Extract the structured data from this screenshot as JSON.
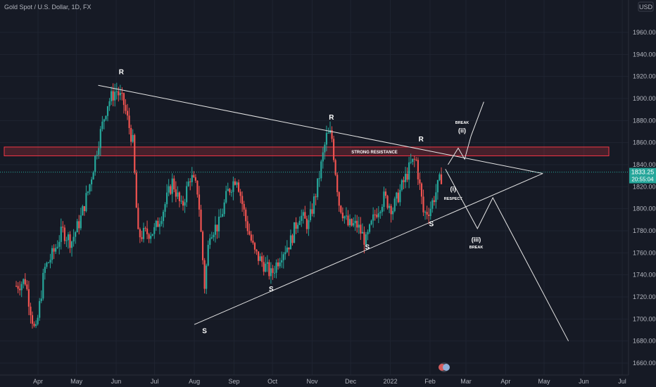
{
  "chart_data": {
    "type": "candlestick",
    "title": "Gold Spot / U.S. Dollar, 1D, FX",
    "currency": "USD",
    "ylim": [
      1650,
      1990
    ],
    "y_ticks": [
      1660,
      1680,
      1700,
      1720,
      1740,
      1760,
      1780,
      1800,
      1820,
      1840,
      1860,
      1880,
      1900,
      1920,
      1940,
      1960
    ],
    "y_tick_labels": [
      "1660.00",
      "1680.00",
      "1700.00",
      "1720.00",
      "1740.00",
      "1760.00",
      "1780.00",
      "1800.00",
      "1820.00",
      "1840.00",
      "1860.00",
      "1880.00",
      "1900.00",
      "1920.00",
      "1940.00",
      "1960.00"
    ],
    "x_tick_labels": [
      "Apr",
      "May",
      "Jun",
      "Jul",
      "Aug",
      "Sep",
      "Oct",
      "Nov",
      "Dec",
      "2022",
      "Feb",
      "Mar",
      "Apr",
      "May",
      "Jun",
      "Jul"
    ],
    "last_price": "1833.25",
    "countdown": "20:55:04",
    "colors": {
      "up": "#26a69a",
      "down": "#ef5350",
      "background": "#161a25",
      "lines": "#e6e6e6",
      "zone": "#f23645",
      "price_badge": "#26a69a"
    },
    "price_path": [
      {
        "date": "2021-03-15",
        "close": 1730
      },
      {
        "date": "2021-03-22",
        "close": 1735
      },
      {
        "date": "2021-03-30",
        "close": 1685
      },
      {
        "date": "2021-04-06",
        "close": 1745
      },
      {
        "date": "2021-04-13",
        "close": 1760
      },
      {
        "date": "2021-04-20",
        "close": 1780
      },
      {
        "date": "2021-04-27",
        "close": 1770
      },
      {
        "date": "2021-05-04",
        "close": 1790
      },
      {
        "date": "2021-05-11",
        "close": 1820
      },
      {
        "date": "2021-05-18",
        "close": 1860
      },
      {
        "date": "2021-05-25",
        "close": 1895
      },
      {
        "date": "2021-06-01",
        "close": 1908
      },
      {
        "date": "2021-06-07",
        "close": 1895
      },
      {
        "date": "2021-06-14",
        "close": 1860
      },
      {
        "date": "2021-06-18",
        "close": 1775
      },
      {
        "date": "2021-06-25",
        "close": 1778
      },
      {
        "date": "2021-07-01",
        "close": 1780
      },
      {
        "date": "2021-07-08",
        "close": 1800
      },
      {
        "date": "2021-07-15",
        "close": 1825
      },
      {
        "date": "2021-07-22",
        "close": 1800
      },
      {
        "date": "2021-07-29",
        "close": 1830
      },
      {
        "date": "2021-08-04",
        "close": 1815
      },
      {
        "date": "2021-08-09",
        "close": 1730
      },
      {
        "date": "2021-08-13",
        "close": 1780
      },
      {
        "date": "2021-08-20",
        "close": 1785
      },
      {
        "date": "2021-08-27",
        "close": 1815
      },
      {
        "date": "2021-09-03",
        "close": 1830
      },
      {
        "date": "2021-09-10",
        "close": 1790
      },
      {
        "date": "2021-09-17",
        "close": 1760
      },
      {
        "date": "2021-09-24",
        "close": 1750
      },
      {
        "date": "2021-09-30",
        "close": 1740
      },
      {
        "date": "2021-10-08",
        "close": 1760
      },
      {
        "date": "2021-10-15",
        "close": 1770
      },
      {
        "date": "2021-10-22",
        "close": 1795
      },
      {
        "date": "2021-10-29",
        "close": 1785
      },
      {
        "date": "2021-11-05",
        "close": 1820
      },
      {
        "date": "2021-11-12",
        "close": 1865
      },
      {
        "date": "2021-11-16",
        "close": 1868
      },
      {
        "date": "2021-11-22",
        "close": 1805
      },
      {
        "date": "2021-11-29",
        "close": 1785
      },
      {
        "date": "2021-12-06",
        "close": 1785
      },
      {
        "date": "2021-12-13",
        "close": 1770
      },
      {
        "date": "2021-12-20",
        "close": 1795
      },
      {
        "date": "2021-12-27",
        "close": 1810
      },
      {
        "date": "2022-01-03",
        "close": 1800
      },
      {
        "date": "2022-01-10",
        "close": 1820
      },
      {
        "date": "2022-01-17",
        "close": 1840
      },
      {
        "date": "2022-01-21",
        "close": 1845
      },
      {
        "date": "2022-01-27",
        "close": 1795
      },
      {
        "date": "2022-02-01",
        "close": 1800
      },
      {
        "date": "2022-02-07",
        "close": 1820
      },
      {
        "date": "2022-02-11",
        "close": 1833
      }
    ],
    "resistance_zone": {
      "label": "STRONG RESISTANCE",
      "from": 1848,
      "to": 1856
    },
    "trendlines": [
      {
        "name": "upper-trendline",
        "from": {
          "date": "2021-05-18",
          "price": 1912
        },
        "to": {
          "date": "2022-04-30",
          "price": 1832
        }
      },
      {
        "name": "lower-trendline",
        "from": {
          "date": "2021-08-01",
          "price": 1695
        },
        "to": {
          "date": "2022-04-30",
          "price": 1832
        }
      }
    ],
    "scenario_paths": [
      {
        "name": "breakout-path",
        "points": [
          {
            "date": "2022-02-15",
            "price": 1840
          },
          {
            "date": "2022-02-23",
            "price": 1855
          },
          {
            "date": "2022-02-28",
            "price": 1845
          },
          {
            "date": "2022-03-05",
            "price": 1866
          },
          {
            "date": "2022-03-15",
            "price": 1897
          }
        ]
      },
      {
        "name": "breakdown-path",
        "points": [
          {
            "date": "2022-02-13",
            "price": 1836
          },
          {
            "date": "2022-03-10",
            "price": 1782
          },
          {
            "date": "2022-03-22",
            "price": 1810
          },
          {
            "date": "2022-05-20",
            "price": 1680
          }
        ]
      }
    ],
    "annotations": [
      {
        "text": "R",
        "date": "2021-06-05",
        "price": 1922
      },
      {
        "text": "R",
        "date": "2021-11-16",
        "price": 1881
      },
      {
        "text": "R",
        "date": "2022-01-25",
        "price": 1861
      },
      {
        "text": "S",
        "date": "2021-08-09",
        "price": 1687
      },
      {
        "text": "S",
        "date": "2021-09-30",
        "price": 1725
      },
      {
        "text": "S",
        "date": "2021-12-14",
        "price": 1763
      },
      {
        "text": "S",
        "date": "2022-02-02",
        "price": 1784
      }
    ],
    "scenario_labels": [
      {
        "text": "BREAK",
        "date": "2022-02-26",
        "price": 1877,
        "size": "small"
      },
      {
        "text": "(ii)",
        "date": "2022-02-26",
        "price": 1869,
        "size": "big"
      },
      {
        "text": "(i)",
        "date": "2022-02-19",
        "price": 1816,
        "size": "big"
      },
      {
        "text": "RESPECT",
        "date": "2022-02-19",
        "price": 1808,
        "size": "small"
      },
      {
        "text": "(iii)",
        "date": "2022-03-09",
        "price": 1770,
        "size": "big"
      },
      {
        "text": "BREAK",
        "date": "2022-03-09",
        "price": 1764,
        "size": "small"
      }
    ]
  }
}
